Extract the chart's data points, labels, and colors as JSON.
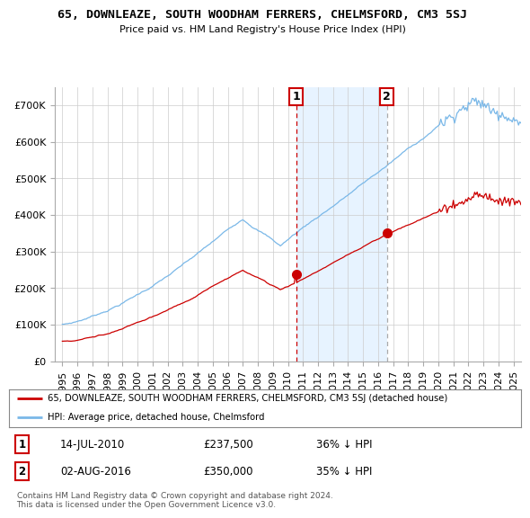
{
  "title": "65, DOWNLEAZE, SOUTH WOODHAM FERRERS, CHELMSFORD, CM3 5SJ",
  "subtitle": "Price paid vs. HM Land Registry's House Price Index (HPI)",
  "legend_line1": "65, DOWNLEAZE, SOUTH WOODHAM FERRERS, CHELMSFORD, CM3 5SJ (detached house)",
  "legend_line2": "HPI: Average price, detached house, Chelmsford",
  "footnote": "Contains HM Land Registry data © Crown copyright and database right 2024.\nThis data is licensed under the Open Government Licence v3.0.",
  "transaction1_date": "14-JUL-2010",
  "transaction1_price": "£237,500",
  "transaction1_hpi": "36% ↓ HPI",
  "transaction2_date": "02-AUG-2016",
  "transaction2_price": "£350,000",
  "transaction2_hpi": "35% ↓ HPI",
  "hpi_color": "#7ab8e8",
  "price_color": "#cc0000",
  "marker1_x": 2010.54,
  "marker1_y": 237500,
  "marker2_x": 2016.58,
  "marker2_y": 350000,
  "ylim_min": 0,
  "ylim_max": 750000,
  "xlim_min": 1994.5,
  "xlim_max": 2025.5,
  "yticks": [
    0,
    100000,
    200000,
    300000,
    400000,
    500000,
    600000,
    700000
  ],
  "ytick_labels": [
    "£0",
    "£100K",
    "£200K",
    "£300K",
    "£400K",
    "£500K",
    "£600K",
    "£700K"
  ],
  "xticks": [
    1995,
    1996,
    1997,
    1998,
    1999,
    2000,
    2001,
    2002,
    2003,
    2004,
    2005,
    2006,
    2007,
    2008,
    2009,
    2010,
    2011,
    2012,
    2013,
    2014,
    2015,
    2016,
    2017,
    2018,
    2019,
    2020,
    2021,
    2022,
    2023,
    2024,
    2025
  ],
  "background_color": "#ffffff",
  "grid_color": "#cccccc",
  "shade_color": "#ddeeff"
}
